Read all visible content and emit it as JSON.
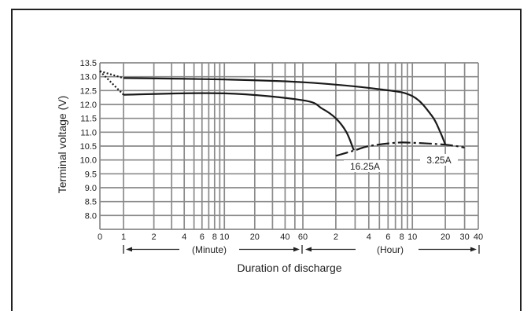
{
  "chart_data": {
    "type": "line",
    "xlabel": "Duration of discharge",
    "ylabel": "Terminal voltage (V)",
    "ylim": [
      7.5,
      13.5
    ],
    "yticks": [
      "13.5",
      "13.0",
      "12.5",
      "12.0",
      "11.5",
      "11.0",
      "10.5",
      "10.0",
      "9.5",
      "9.0",
      "8.5",
      "8.0"
    ],
    "x_scale": "log (minutes segment + hours segment)",
    "minute_ticks": [
      "0",
      "1",
      "2",
      "4",
      "6",
      "8",
      "10",
      "20",
      "40",
      "60"
    ],
    "hour_ticks": [
      "2",
      "4",
      "6",
      "8",
      "10",
      "20",
      "30",
      "40"
    ],
    "minute_range_label": "(Minute)",
    "hour_range_label": "(Hour)",
    "grid": true,
    "series": [
      {
        "name": "3.25A",
        "x_minutes": [
          0,
          1,
          10,
          60,
          300,
          600,
          900,
          1080,
          1200
        ],
        "y": [
          13.2,
          12.95,
          12.9,
          12.8,
          12.55,
          12.3,
          11.6,
          11.0,
          10.55
        ]
      },
      {
        "name": "16.25A",
        "x_minutes": [
          0,
          1,
          10,
          60,
          90,
          120,
          150,
          175
        ],
        "y": [
          13.2,
          12.35,
          12.4,
          12.15,
          11.85,
          11.5,
          11.0,
          10.35
        ]
      }
    ],
    "cutoff_curve": {
      "x_minutes": [
        120,
        180,
        240,
        420,
        600,
        1200,
        1800
      ],
      "y": [
        10.15,
        10.35,
        10.5,
        10.62,
        10.62,
        10.55,
        10.45
      ]
    }
  }
}
